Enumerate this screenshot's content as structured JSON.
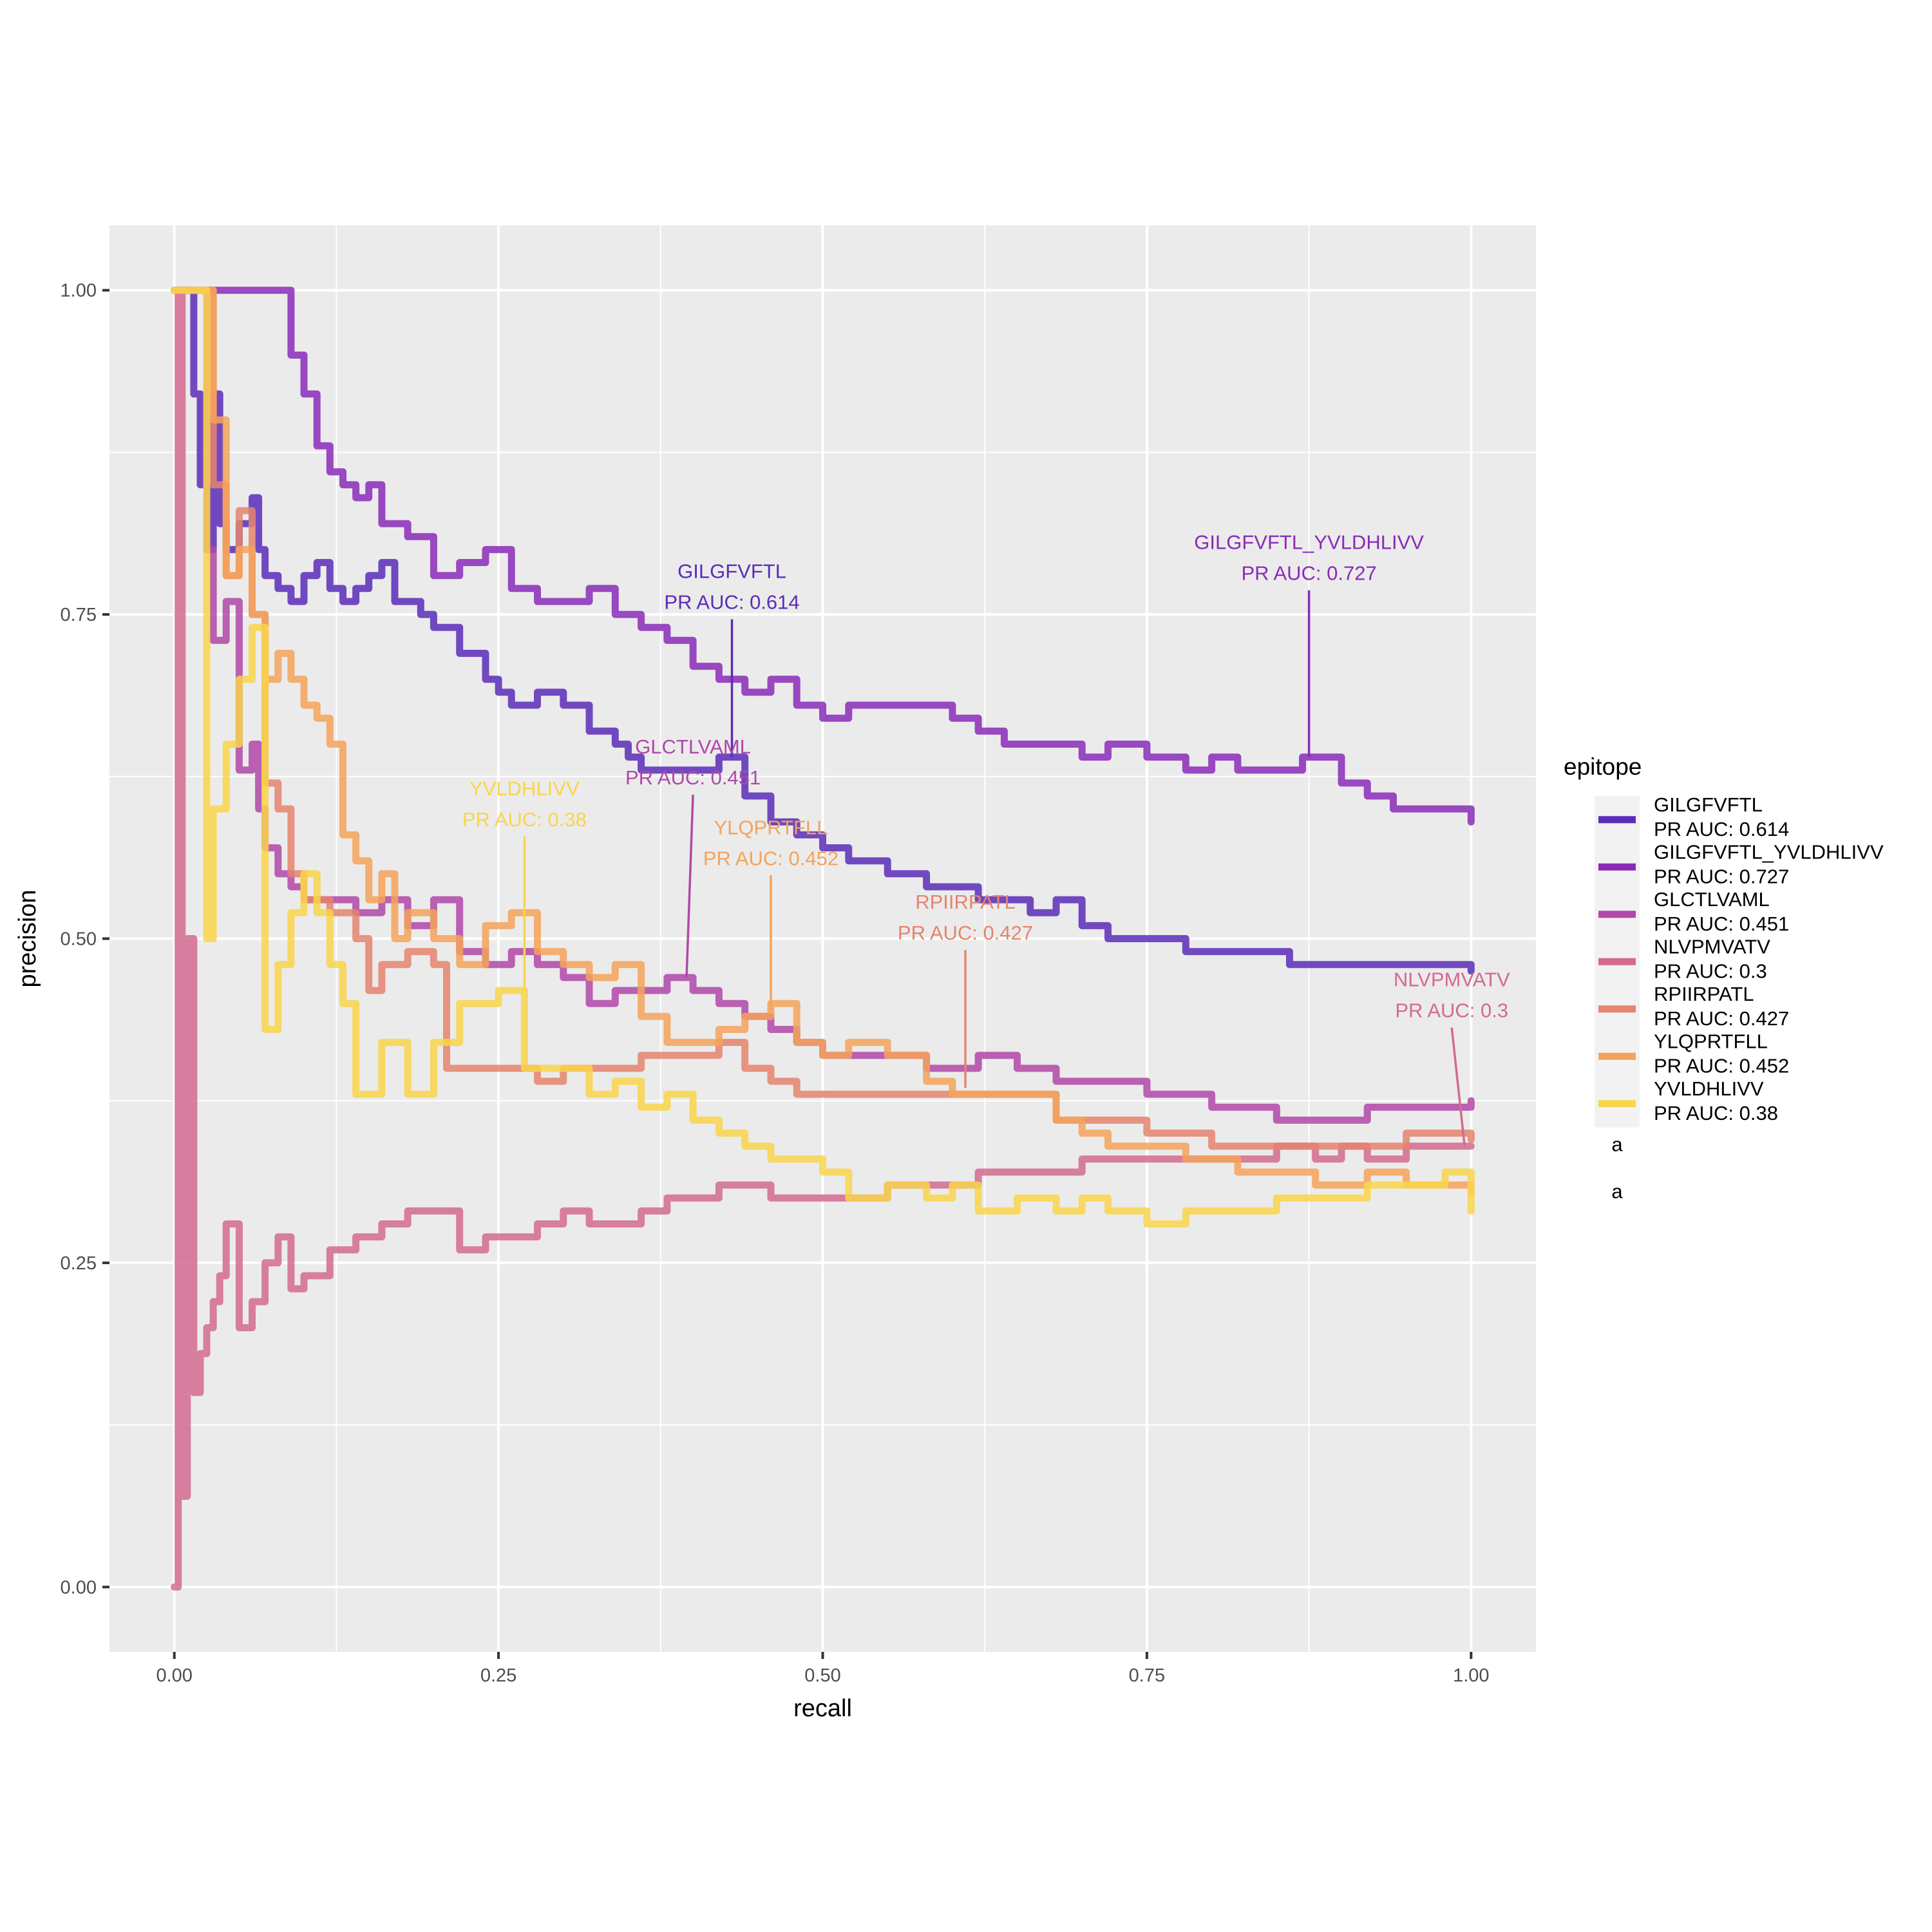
{
  "chart_data": {
    "type": "line",
    "xlabel": "recall",
    "ylabel": "precision",
    "xlim": [
      -0.05,
      1.05
    ],
    "ylim": [
      -0.05,
      1.05
    ],
    "x_ticks": [
      0.0,
      0.25,
      0.5,
      0.75,
      1.0
    ],
    "x_tick_labels": [
      "0.00",
      "0.25",
      "0.50",
      "0.75",
      "1.00"
    ],
    "y_ticks": [
      0.0,
      0.25,
      0.5,
      0.75,
      1.0
    ],
    "y_tick_labels": [
      "0.00",
      "0.25",
      "0.50",
      "0.75",
      "1.00"
    ],
    "grid": true,
    "legend_title": "epitope",
    "legend_position": "right",
    "legend_extra_glyph": "a",
    "series": [
      {
        "name": "GILGFVFTL\nPR AUC: 0.614",
        "color": "#5B2DB8",
        "x": [
          0.0,
          0.01,
          0.015,
          0.02,
          0.025,
          0.03,
          0.035,
          0.04,
          0.05,
          0.06,
          0.065,
          0.07,
          0.08,
          0.09,
          0.1,
          0.11,
          0.12,
          0.13,
          0.14,
          0.15,
          0.16,
          0.17,
          0.19,
          0.2,
          0.22,
          0.24,
          0.25,
          0.26,
          0.28,
          0.3,
          0.32,
          0.34,
          0.35,
          0.36,
          0.38,
          0.4,
          0.42,
          0.44,
          0.46,
          0.48,
          0.5,
          0.52,
          0.55,
          0.58,
          0.6,
          0.62,
          0.64,
          0.66,
          0.68,
          0.7,
          0.72,
          0.75,
          0.78,
          0.82,
          0.86,
          0.9,
          0.94,
          0.97,
          1.0
        ],
        "y": [
          1.0,
          1.0,
          0.92,
          0.85,
          0.8,
          0.92,
          0.82,
          0.8,
          0.82,
          0.84,
          0.8,
          0.78,
          0.77,
          0.76,
          0.78,
          0.79,
          0.77,
          0.76,
          0.77,
          0.78,
          0.79,
          0.76,
          0.75,
          0.74,
          0.72,
          0.7,
          0.69,
          0.68,
          0.69,
          0.68,
          0.66,
          0.65,
          0.64,
          0.63,
          0.63,
          0.63,
          0.64,
          0.61,
          0.59,
          0.58,
          0.57,
          0.56,
          0.55,
          0.54,
          0.54,
          0.53,
          0.53,
          0.52,
          0.53,
          0.51,
          0.5,
          0.5,
          0.49,
          0.49,
          0.48,
          0.48,
          0.48,
          0.48,
          0.475
        ]
      },
      {
        "name": "GILGFVFTL_YVLDHLIVV\nPR AUC: 0.727",
        "color": "#8A2BB8",
        "x": [
          0.0,
          0.02,
          0.04,
          0.06,
          0.08,
          0.09,
          0.1,
          0.11,
          0.12,
          0.13,
          0.14,
          0.15,
          0.16,
          0.18,
          0.2,
          0.22,
          0.24,
          0.26,
          0.28,
          0.3,
          0.32,
          0.34,
          0.36,
          0.38,
          0.4,
          0.42,
          0.44,
          0.46,
          0.48,
          0.5,
          0.52,
          0.55,
          0.58,
          0.6,
          0.62,
          0.64,
          0.66,
          0.68,
          0.7,
          0.72,
          0.75,
          0.78,
          0.8,
          0.82,
          0.85,
          0.87,
          0.9,
          0.92,
          0.94,
          0.97,
          1.0
        ],
        "y": [
          1.0,
          1.0,
          1.0,
          1.0,
          1.0,
          0.95,
          0.92,
          0.88,
          0.86,
          0.85,
          0.84,
          0.85,
          0.82,
          0.81,
          0.78,
          0.79,
          0.8,
          0.77,
          0.76,
          0.76,
          0.77,
          0.75,
          0.74,
          0.73,
          0.71,
          0.7,
          0.69,
          0.7,
          0.68,
          0.67,
          0.68,
          0.68,
          0.68,
          0.67,
          0.66,
          0.65,
          0.65,
          0.65,
          0.64,
          0.65,
          0.64,
          0.63,
          0.64,
          0.63,
          0.63,
          0.64,
          0.62,
          0.61,
          0.6,
          0.6,
          0.59
        ]
      },
      {
        "name": "GLCTLVAML\nPR AUC: 0.451",
        "color": "#B048A8",
        "x": [
          0.0,
          0.02,
          0.025,
          0.03,
          0.04,
          0.05,
          0.06,
          0.065,
          0.07,
          0.08,
          0.09,
          0.1,
          0.12,
          0.14,
          0.16,
          0.18,
          0.2,
          0.22,
          0.24,
          0.26,
          0.28,
          0.3,
          0.32,
          0.34,
          0.36,
          0.38,
          0.4,
          0.42,
          0.44,
          0.46,
          0.48,
          0.5,
          0.52,
          0.55,
          0.58,
          0.6,
          0.62,
          0.65,
          0.68,
          0.7,
          0.72,
          0.75,
          0.78,
          0.8,
          0.82,
          0.85,
          0.88,
          0.9,
          0.92,
          0.94,
          0.97,
          1.0
        ],
        "y": [
          1.0,
          1.0,
          0.8,
          0.73,
          0.76,
          0.63,
          0.65,
          0.6,
          0.57,
          0.55,
          0.54,
          0.53,
          0.53,
          0.52,
          0.53,
          0.51,
          0.53,
          0.49,
          0.48,
          0.49,
          0.48,
          0.47,
          0.45,
          0.46,
          0.46,
          0.47,
          0.46,
          0.45,
          0.44,
          0.43,
          0.42,
          0.41,
          0.41,
          0.41,
          0.4,
          0.4,
          0.41,
          0.4,
          0.39,
          0.39,
          0.39,
          0.38,
          0.38,
          0.37,
          0.37,
          0.36,
          0.36,
          0.36,
          0.37,
          0.37,
          0.37,
          0.375
        ]
      },
      {
        "name": "NLVPMVATV\nPR AUC: 0.3",
        "color": "#D46A8F",
        "x": [
          0.0,
          0.003,
          0.006,
          0.01,
          0.015,
          0.02,
          0.025,
          0.03,
          0.035,
          0.04,
          0.05,
          0.06,
          0.07,
          0.08,
          0.09,
          0.1,
          0.12,
          0.14,
          0.16,
          0.18,
          0.2,
          0.22,
          0.24,
          0.26,
          0.28,
          0.3,
          0.32,
          0.34,
          0.36,
          0.38,
          0.4,
          0.42,
          0.44,
          0.46,
          0.48,
          0.5,
          0.52,
          0.55,
          0.58,
          0.6,
          0.62,
          0.65,
          0.68,
          0.7,
          0.72,
          0.75,
          0.78,
          0.8,
          0.82,
          0.85,
          0.88,
          0.9,
          0.92,
          0.95,
          0.98,
          1.0
        ],
        "y": [
          0.0,
          1.0,
          0.07,
          0.5,
          0.15,
          0.18,
          0.2,
          0.22,
          0.24,
          0.28,
          0.2,
          0.22,
          0.25,
          0.27,
          0.23,
          0.24,
          0.26,
          0.27,
          0.28,
          0.29,
          0.29,
          0.26,
          0.27,
          0.27,
          0.28,
          0.29,
          0.28,
          0.28,
          0.29,
          0.3,
          0.3,
          0.31,
          0.31,
          0.3,
          0.3,
          0.3,
          0.3,
          0.31,
          0.31,
          0.31,
          0.32,
          0.32,
          0.32,
          0.33,
          0.33,
          0.33,
          0.33,
          0.33,
          0.33,
          0.34,
          0.33,
          0.34,
          0.33,
          0.34,
          0.34,
          0.34
        ]
      },
      {
        "name": "RPIIRPATL\nPR AUC: 0.427",
        "color": "#E5846F",
        "x": [
          0.0,
          0.02,
          0.03,
          0.04,
          0.05,
          0.06,
          0.07,
          0.08,
          0.09,
          0.1,
          0.12,
          0.14,
          0.15,
          0.16,
          0.18,
          0.2,
          0.21,
          0.22,
          0.24,
          0.26,
          0.28,
          0.3,
          0.32,
          0.34,
          0.36,
          0.38,
          0.4,
          0.42,
          0.44,
          0.46,
          0.48,
          0.5,
          0.52,
          0.55,
          0.58,
          0.6,
          0.62,
          0.65,
          0.68,
          0.7,
          0.72,
          0.75,
          0.78,
          0.8,
          0.82,
          0.85,
          0.88,
          0.9,
          0.92,
          0.95,
          0.98,
          1.0
        ],
        "y": [
          1.0,
          1.0,
          0.85,
          0.78,
          0.83,
          0.75,
          0.62,
          0.6,
          0.55,
          0.53,
          0.52,
          0.5,
          0.46,
          0.48,
          0.49,
          0.48,
          0.4,
          0.4,
          0.4,
          0.4,
          0.39,
          0.4,
          0.4,
          0.4,
          0.41,
          0.41,
          0.41,
          0.42,
          0.4,
          0.39,
          0.38,
          0.38,
          0.38,
          0.38,
          0.38,
          0.38,
          0.38,
          0.38,
          0.36,
          0.36,
          0.36,
          0.35,
          0.35,
          0.34,
          0.34,
          0.34,
          0.34,
          0.34,
          0.34,
          0.35,
          0.35,
          0.345
        ]
      },
      {
        "name": "YLQPRTFLL\nPR AUC: 0.452",
        "color": "#F4A35A",
        "x": [
          0.0,
          0.02,
          0.03,
          0.04,
          0.05,
          0.06,
          0.07,
          0.08,
          0.09,
          0.1,
          0.11,
          0.12,
          0.13,
          0.14,
          0.15,
          0.16,
          0.17,
          0.18,
          0.2,
          0.22,
          0.24,
          0.26,
          0.28,
          0.3,
          0.32,
          0.34,
          0.36,
          0.38,
          0.4,
          0.42,
          0.44,
          0.46,
          0.48,
          0.5,
          0.52,
          0.55,
          0.58,
          0.6,
          0.62,
          0.65,
          0.68,
          0.7,
          0.72,
          0.75,
          0.78,
          0.8,
          0.82,
          0.85,
          0.88,
          0.9,
          0.92,
          0.95,
          0.98,
          1.0
        ],
        "y": [
          1.0,
          1.0,
          0.9,
          0.78,
          0.8,
          0.75,
          0.7,
          0.72,
          0.7,
          0.68,
          0.67,
          0.65,
          0.58,
          0.56,
          0.53,
          0.55,
          0.5,
          0.52,
          0.5,
          0.48,
          0.51,
          0.52,
          0.49,
          0.48,
          0.47,
          0.48,
          0.44,
          0.42,
          0.42,
          0.43,
          0.44,
          0.45,
          0.42,
          0.41,
          0.42,
          0.41,
          0.39,
          0.38,
          0.38,
          0.38,
          0.36,
          0.35,
          0.34,
          0.34,
          0.33,
          0.33,
          0.32,
          0.32,
          0.31,
          0.31,
          0.32,
          0.31,
          0.31,
          0.305
        ]
      },
      {
        "name": "YVLDHLIVV\nPR AUC: 0.38",
        "color": "#F9D54A",
        "x": [
          0.0,
          0.02,
          0.025,
          0.03,
          0.04,
          0.05,
          0.06,
          0.07,
          0.08,
          0.09,
          0.1,
          0.11,
          0.12,
          0.13,
          0.14,
          0.16,
          0.18,
          0.2,
          0.22,
          0.25,
          0.27,
          0.28,
          0.3,
          0.32,
          0.34,
          0.36,
          0.38,
          0.4,
          0.42,
          0.44,
          0.46,
          0.48,
          0.5,
          0.52,
          0.55,
          0.58,
          0.6,
          0.62,
          0.65,
          0.68,
          0.7,
          0.72,
          0.75,
          0.78,
          0.8,
          0.82,
          0.85,
          0.88,
          0.9,
          0.92,
          0.95,
          0.98,
          1.0
        ],
        "y": [
          1.0,
          1.0,
          0.5,
          0.6,
          0.65,
          0.7,
          0.74,
          0.43,
          0.48,
          0.52,
          0.55,
          0.52,
          0.48,
          0.45,
          0.38,
          0.42,
          0.38,
          0.42,
          0.45,
          0.46,
          0.4,
          0.4,
          0.4,
          0.38,
          0.39,
          0.37,
          0.38,
          0.36,
          0.35,
          0.34,
          0.33,
          0.33,
          0.32,
          0.3,
          0.31,
          0.3,
          0.31,
          0.29,
          0.3,
          0.29,
          0.3,
          0.29,
          0.28,
          0.29,
          0.29,
          0.29,
          0.3,
          0.3,
          0.3,
          0.31,
          0.31,
          0.32,
          0.29
        ]
      }
    ],
    "annotations": [
      {
        "label": "GILGFVFTL\nPR AUC: 0.614",
        "x": 0.43,
        "y": 0.64,
        "color": "#5B2DB8"
      },
      {
        "label": "GILGFVFTL_YVLDHLIVV\nPR AUC: 0.727",
        "x": 0.875,
        "y": 0.64,
        "color": "#8A2BB8"
      },
      {
        "label": "GLCTLVAML\nPR AUC: 0.451",
        "x": 0.395,
        "y": 0.47,
        "color": "#B048A8"
      },
      {
        "label": "YVLDHLIVV\nPR AUC: 0.38",
        "x": 0.27,
        "y": 0.46,
        "color": "#F9D54A"
      },
      {
        "label": "YLQPRTFLL\nPR AUC: 0.452",
        "x": 0.46,
        "y": 0.445,
        "color": "#F4A35A"
      },
      {
        "label": "RPIIRPATL\nPR AUC: 0.427",
        "x": 0.61,
        "y": 0.385,
        "color": "#E5846F"
      },
      {
        "label": "NLVPMVATV\nPR AUC: 0.3",
        "x": 0.995,
        "y": 0.34,
        "color": "#D46A8F"
      }
    ]
  }
}
